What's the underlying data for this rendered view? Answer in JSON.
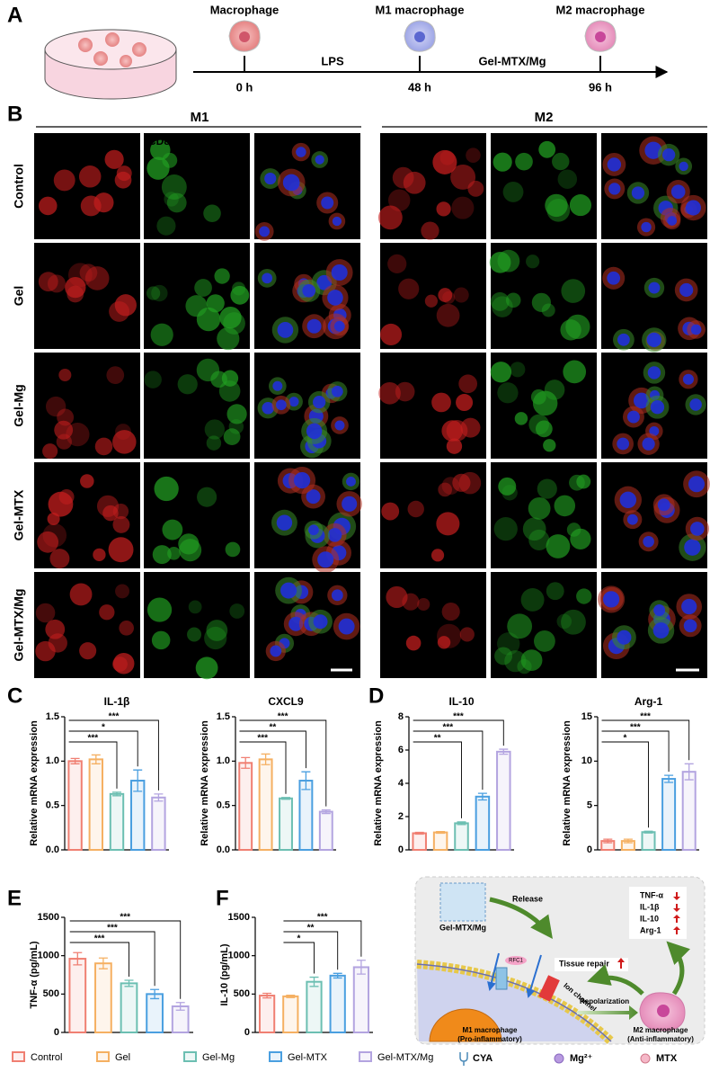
{
  "panel_a": {
    "letter": "A",
    "stages": [
      {
        "name": "Macrophage",
        "time": "0 h"
      },
      {
        "name": "M1 macrophage",
        "time": "48 h"
      },
      {
        "name": "M2 macrophage",
        "time": "96 h"
      }
    ],
    "treatments": [
      "LPS",
      "Gel-MTX/Mg"
    ]
  },
  "panel_b": {
    "letter": "B",
    "groups": [
      {
        "title": "M1",
        "channels": [
          "CD68",
          "CD86",
          "Merge"
        ]
      },
      {
        "title": "M2",
        "channels": [
          "CD68",
          "CD206",
          "Merge"
        ]
      }
    ],
    "rows": [
      "Control",
      "Gel",
      "Gel-Mg",
      "Gel-MTX",
      "Gel-MTX/Mg"
    ]
  },
  "panel_letters": [
    "C",
    "D",
    "E",
    "F"
  ],
  "chart_data": [
    {
      "type": "bar",
      "title": "IL-1β",
      "y_label": "Relative mRNA expression",
      "ylim": [
        0,
        1.5
      ],
      "yticks": [
        {
          "value": 0,
          "label": "0.0"
        },
        {
          "value": 0.5,
          "label": "0.5"
        },
        {
          "value": 1,
          "label": "1.0"
        },
        {
          "value": 1.5,
          "label": "1.5"
        }
      ],
      "values": [
        1.0,
        1.02,
        0.63,
        0.78,
        0.59
      ],
      "errors": [
        0.03,
        0.05,
        0.02,
        0.12,
        0.04
      ],
      "significance": [
        {
          "from": 0,
          "to": 2,
          "label": "***"
        },
        {
          "from": 0,
          "to": 3,
          "label": "*"
        },
        {
          "from": 0,
          "to": 4,
          "label": "***"
        }
      ]
    },
    {
      "type": "bar",
      "title": "CXCL9",
      "y_label": "Relative mRNA expression",
      "ylim": [
        0,
        1.5
      ],
      "yticks": [
        {
          "value": 0,
          "label": "0.0"
        },
        {
          "value": 0.5,
          "label": "0.5"
        },
        {
          "value": 1,
          "label": "1.0"
        },
        {
          "value": 1.5,
          "label": "1.5"
        }
      ],
      "values": [
        0.98,
        1.02,
        0.58,
        0.78,
        0.43
      ],
      "errors": [
        0.06,
        0.06,
        0.01,
        0.1,
        0.02
      ],
      "significance": [
        {
          "from": 0,
          "to": 2,
          "label": "***"
        },
        {
          "from": 0,
          "to": 3,
          "label": "**"
        },
        {
          "from": 0,
          "to": 4,
          "label": "***"
        }
      ]
    },
    {
      "type": "bar",
      "title": "IL-10",
      "y_label": "Relative mRNA expression",
      "ylim": [
        0,
        8
      ],
      "yticks": [
        0,
        2,
        4,
        6,
        8
      ],
      "values": [
        1.0,
        1.05,
        1.6,
        3.2,
        5.9
      ],
      "errors": [
        0.05,
        0.05,
        0.08,
        0.2,
        0.15
      ],
      "significance": [
        {
          "from": 0,
          "to": 2,
          "label": "**"
        },
        {
          "from": 0,
          "to": 3,
          "label": "***"
        },
        {
          "from": 0,
          "to": 4,
          "label": "***"
        }
      ]
    },
    {
      "type": "bar",
      "title": "Arg-1",
      "y_label": "Relative mRNA expression",
      "ylim": [
        0,
        15
      ],
      "yticks": [
        0,
        5,
        10,
        15
      ],
      "values": [
        1.0,
        1.0,
        2.0,
        8.0,
        8.8
      ],
      "errors": [
        0.2,
        0.2,
        0.1,
        0.4,
        0.9
      ],
      "significance": [
        {
          "from": 0,
          "to": 2,
          "label": "*"
        },
        {
          "from": 0,
          "to": 3,
          "label": "***"
        },
        {
          "from": 0,
          "to": 4,
          "label": "***"
        }
      ]
    },
    {
      "type": "bar",
      "y_label": "TNF-α (pg/mL)",
      "ylim": [
        0,
        1500
      ],
      "yticks": [
        0,
        500,
        1000,
        1500
      ],
      "values": [
        960,
        900,
        640,
        500,
        340
      ],
      "errors": [
        80,
        70,
        40,
        60,
        50
      ],
      "significance": [
        {
          "from": 0,
          "to": 2,
          "label": "***"
        },
        {
          "from": 0,
          "to": 3,
          "label": "***"
        },
        {
          "from": 0,
          "to": 4,
          "label": "***"
        }
      ]
    },
    {
      "type": "bar",
      "y_label": "IL-10 (pg/mL)",
      "ylim": [
        0,
        1500
      ],
      "yticks": [
        0,
        500,
        1000,
        1500
      ],
      "values": [
        480,
        470,
        660,
        740,
        850
      ],
      "errors": [
        30,
        15,
        60,
        30,
        90
      ],
      "significance": [
        {
          "from": 1,
          "to": 2,
          "label": "*"
        },
        {
          "from": 1,
          "to": 3,
          "label": "**"
        },
        {
          "from": 1,
          "to": 4,
          "label": "***"
        }
      ]
    }
  ],
  "legend": [
    {
      "name": "Control",
      "color": "#f07f72"
    },
    {
      "name": "Gel",
      "color": "#f5b062"
    },
    {
      "name": "Gel-Mg",
      "color": "#6cbfb2"
    },
    {
      "name": "Gel-MTX",
      "color": "#4a9fe0"
    },
    {
      "name": "Gel-MTX/Mg",
      "color": "#b3a4e0"
    }
  ],
  "panel_g": {
    "letter": "G",
    "gel": "Gel-MTX/Mg",
    "release": "Release",
    "transporter": "RFC1",
    "channel": "Ion channel",
    "tissue_repair": "Tissue repair",
    "markers": [
      "TNF-α",
      "IL-1β",
      "IL-10",
      "Arg-1"
    ],
    "repolarization": "Repolarization",
    "m1": {
      "name": "M1 macrophage",
      "note": "(Pro-inflammatory)"
    },
    "m2": {
      "name": "M2 macrophage",
      "note": "(Anti-inflammatory)"
    },
    "symbols": [
      "CYA",
      "Mg²⁺",
      "MTX"
    ]
  }
}
